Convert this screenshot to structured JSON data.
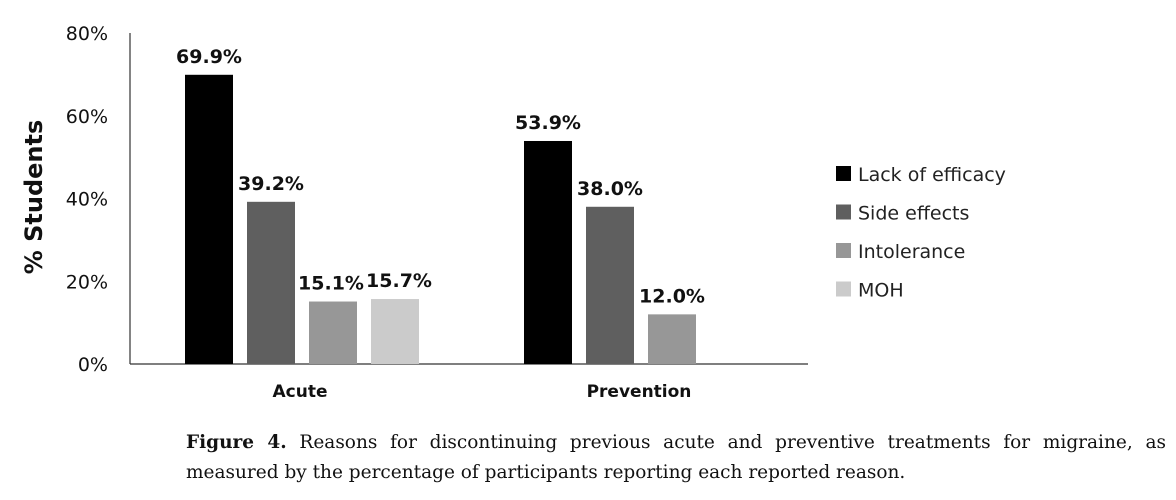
{
  "chart_data": {
    "type": "bar",
    "categories": [
      "Acute",
      "Prevention"
    ],
    "ylabel": "% Students",
    "xlabel": "",
    "ylim": [
      0,
      80
    ],
    "ytick_labels": [
      "0%",
      "20%",
      "40%",
      "60%",
      "80%"
    ],
    "grid": false,
    "legend_position": "right",
    "series": [
      {
        "name": "Lack of efficacy",
        "color": "#000000",
        "values": [
          69.9,
          53.9
        ],
        "labels": [
          "69.9%",
          "53.9%"
        ]
      },
      {
        "name": "Side effects",
        "color": "#5f5f5f",
        "values": [
          39.2,
          38.0
        ],
        "labels": [
          "39.2%",
          "38.0%"
        ]
      },
      {
        "name": "Intolerance",
        "color": "#979797",
        "values": [
          15.1,
          12.0
        ],
        "labels": [
          "15.1%",
          "12.0%"
        ]
      },
      {
        "name": "MOH",
        "color": "#cbcbcb",
        "values": [
          15.7,
          null
        ],
        "labels": [
          "15.7%",
          null
        ]
      }
    ]
  },
  "caption": {
    "label": "Figure 4.",
    "text": "Reasons for discontinuing previous acute and preventive treatments for migraine, as measured by the percentage of participants reporting each reported reason."
  }
}
